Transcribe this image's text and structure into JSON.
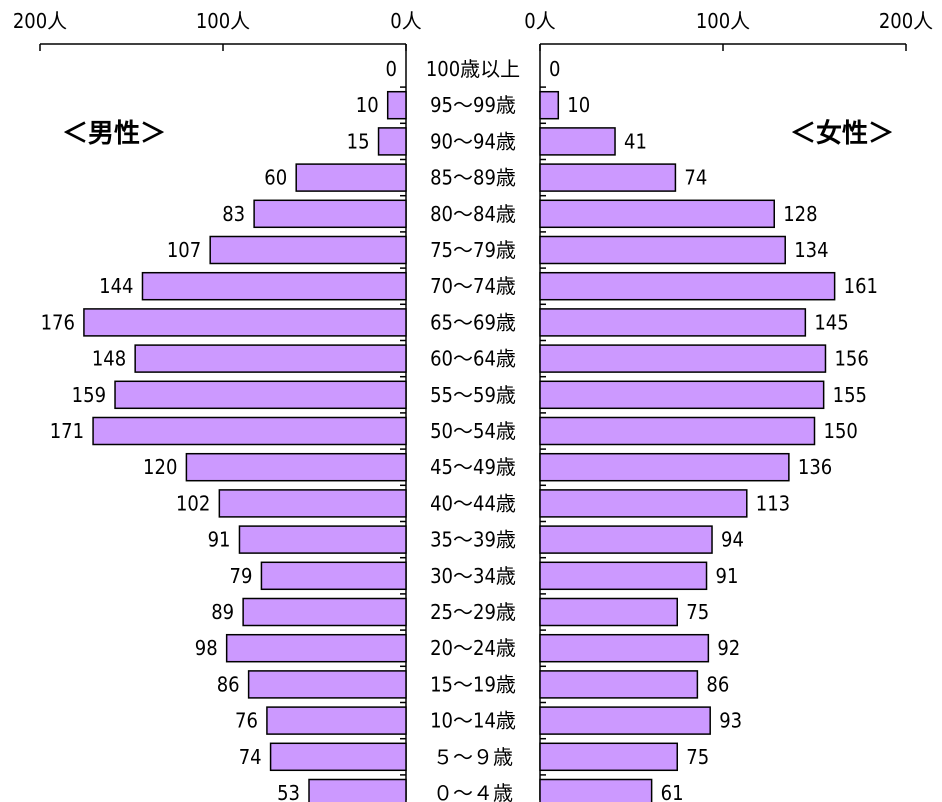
{
  "chart_data": {
    "type": "bar",
    "orientation": "horizontal-pyramid",
    "male_label": "＜男性＞",
    "female_label": "＜女性＞",
    "male_ticks": [
      "200人",
      "100人",
      "0人"
    ],
    "female_ticks": [
      "0人",
      "100人",
      "200人"
    ],
    "xlim": [
      0,
      200
    ],
    "categories": [
      "100歳以上",
      "95～99歳",
      "90～94歳",
      "85～89歳",
      "80～84歳",
      "75～79歳",
      "70～74歳",
      "65～69歳",
      "60～64歳",
      "55～59歳",
      "50～54歳",
      "45～49歳",
      "40～44歳",
      "35～39歳",
      "30～34歳",
      "25～29歳",
      "20～24歳",
      "15～19歳",
      "10～14歳",
      "５～９歳",
      "０～４歳"
    ],
    "series": [
      {
        "name": "男性",
        "values": [
          0,
          10,
          15,
          60,
          83,
          107,
          144,
          176,
          148,
          159,
          171,
          120,
          102,
          91,
          79,
          89,
          98,
          86,
          76,
          74,
          53
        ]
      },
      {
        "name": "女性",
        "values": [
          0,
          10,
          41,
          74,
          128,
          134,
          161,
          145,
          156,
          155,
          150,
          136,
          113,
          94,
          91,
          75,
          92,
          86,
          93,
          75,
          61
        ]
      }
    ],
    "colors": {
      "bar_fill": "#cc99ff",
      "bar_stroke": "#000000",
      "axis": "#000000"
    }
  }
}
